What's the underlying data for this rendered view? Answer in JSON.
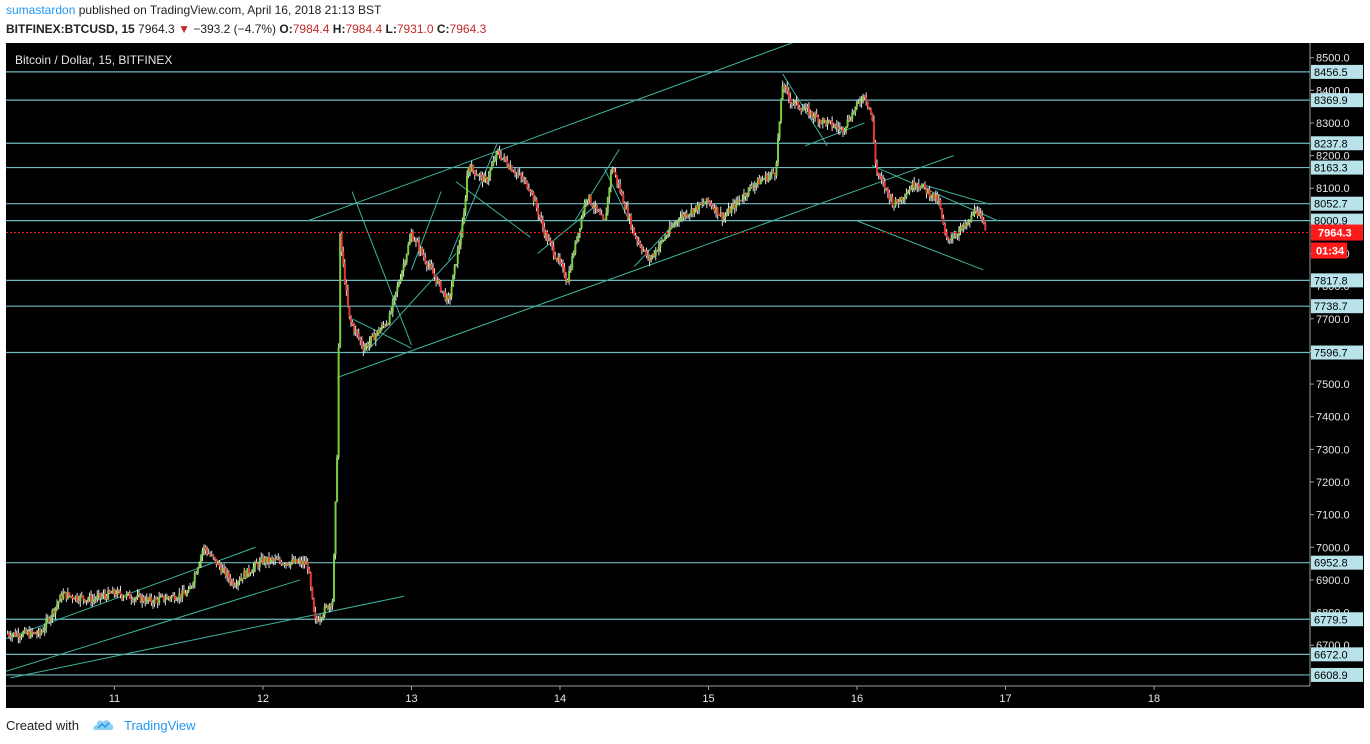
{
  "header": {
    "author": "sumastardon",
    "published": "published on TradingView.com, April 16, 2018 21:13 BST",
    "symbol": "BITFINEX:BTCUSD, 15",
    "last": "7964.3",
    "change": "−393.2 (−4.7%)",
    "open_label": "O:",
    "open": "7984.4",
    "high_label": "H:",
    "high": "7984.4",
    "low_label": "L:",
    "low": "7931.0",
    "close_label": "C:",
    "close": "7964.3",
    "arrow": "▼"
  },
  "footer": {
    "created_with": "Created with",
    "brand": "TradingView"
  },
  "colors": {
    "background": "#000000",
    "up": "#7ccf3c",
    "down": "#e53935",
    "wick": "#e0e0e0",
    "levels": "#6fb8c0",
    "trendlines": "#3cb39e",
    "price_tag": "#ff1a1a",
    "tag_fill": "#b9e3ea"
  },
  "chart_data": {
    "type": "candlestick",
    "title": "Bitcoin / Dollar, 15, BITFINEX",
    "x_ticks": [
      "11",
      "12",
      "13",
      "14",
      "15",
      "16",
      "17",
      "18"
    ],
    "y_ticks": [
      "6700.0",
      "6800.0",
      "6900.0",
      "7000.0",
      "7100.0",
      "7200.0",
      "7300.0",
      "7400.0",
      "7500.0",
      "7600.0",
      "7700.0",
      "7800.0",
      "7900.0",
      "8000.0",
      "8100.0",
      "8200.0",
      "8300.0",
      "8400.0",
      "8500.0"
    ],
    "ylim": [
      6575,
      8545
    ],
    "xlim": [
      10.27,
      19.05
    ],
    "horizontal_levels": [
      "8456.5",
      "8369.9",
      "8237.8",
      "8163.3",
      "8052.7",
      "8000.9",
      "7817.8",
      "7738.7",
      "7596.7",
      "6952.8",
      "6779.5",
      "6672.0",
      "6608.9"
    ],
    "current_price": "7964.3",
    "countdown": "01:34",
    "price_path": [
      [
        10.27,
        6735
      ],
      [
        10.5,
        6735
      ],
      [
        10.65,
        6855
      ],
      [
        10.85,
        6840
      ],
      [
        11.0,
        6860
      ],
      [
        11.25,
        6835
      ],
      [
        11.5,
        6860
      ],
      [
        11.6,
        7000
      ],
      [
        11.8,
        6890
      ],
      [
        12.0,
        6960
      ],
      [
        12.3,
        6950
      ],
      [
        12.35,
        6770
      ],
      [
        12.47,
        6840
      ],
      [
        12.5,
        7300
      ],
      [
        12.52,
        7950
      ],
      [
        12.58,
        7700
      ],
      [
        12.68,
        7610
      ],
      [
        12.85,
        7700
      ],
      [
        13.0,
        7960
      ],
      [
        13.25,
        7750
      ],
      [
        13.35,
        8000
      ],
      [
        13.38,
        8170
      ],
      [
        13.5,
        8120
      ],
      [
        13.58,
        8210
      ],
      [
        13.8,
        8100
      ],
      [
        13.9,
        7960
      ],
      [
        14.05,
        7820
      ],
      [
        14.18,
        8080
      ],
      [
        14.3,
        7990
      ],
      [
        14.35,
        8170
      ],
      [
        14.5,
        7960
      ],
      [
        14.6,
        7880
      ],
      [
        14.8,
        8010
      ],
      [
        15.0,
        8060
      ],
      [
        15.1,
        8010
      ],
      [
        15.3,
        8110
      ],
      [
        15.45,
        8150
      ],
      [
        15.5,
        8420
      ],
      [
        15.55,
        8370
      ],
      [
        15.75,
        8310
      ],
      [
        15.9,
        8280
      ],
      [
        16.05,
        8390
      ],
      [
        16.1,
        8320
      ],
      [
        16.13,
        8150
      ],
      [
        16.25,
        8050
      ],
      [
        16.4,
        8120
      ],
      [
        16.55,
        8060
      ],
      [
        16.6,
        7940
      ],
      [
        16.75,
        7990
      ],
      [
        16.8,
        8040
      ],
      [
        16.87,
        7964
      ]
    ]
  }
}
